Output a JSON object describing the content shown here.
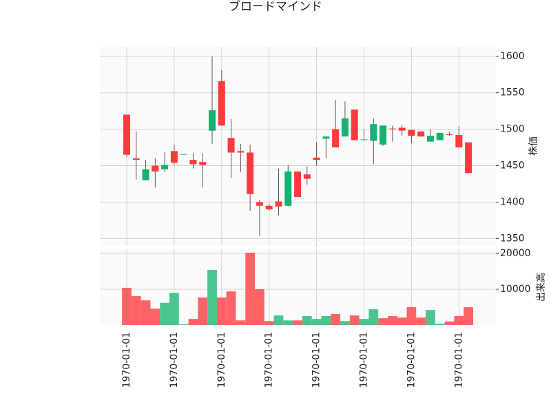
{
  "chart_data": {
    "type": "candlestick",
    "title": "ブロードマインド",
    "categories": [
      "1970-01-01",
      null,
      null,
      null,
      null,
      "1970-01-01",
      null,
      null,
      null,
      null,
      "1970-01-01",
      null,
      null,
      null,
      null,
      "1970-01-01",
      null,
      null,
      null,
      null,
      "1970-01-01",
      null,
      null,
      null,
      null,
      "1970-01-01",
      null,
      null,
      null,
      null,
      "1970-01-01",
      null,
      null,
      null,
      null,
      "1970-01-01",
      null
    ],
    "open": [
      1520,
      1460,
      1430,
      1450,
      1445,
      1470,
      1466,
      1458,
      1455,
      1498,
      1566,
      1488,
      1470,
      1468,
      1400,
      1395,
      1401,
      1395,
      1442,
      1438,
      1461,
      1487,
      1500,
      1490,
      1527,
      1486,
      1484,
      1479,
      1501,
      1502,
      1499,
      1497,
      1483,
      1485,
      1493,
      1492,
      1482
    ],
    "high": [
      1520,
      1497,
      1458,
      1460,
      1469,
      1479,
      1466,
      1467,
      1467,
      1600,
      1581,
      1514,
      1480,
      1479,
      1403,
      1398,
      1446,
      1451,
      1442,
      1449,
      1482,
      1490,
      1540,
      1538,
      1527,
      1500,
      1515,
      1505,
      1505,
      1506,
      1499,
      1497,
      1500,
      1495,
      1496,
      1504,
      1482
    ],
    "low": [
      1462,
      1431,
      1430,
      1420,
      1441,
      1451,
      1466,
      1446,
      1420,
      1480,
      1505,
      1433,
      1441,
      1388,
      1354,
      1388,
      1382,
      1394,
      1407,
      1424,
      1450,
      1460,
      1475,
      1490,
      1485,
      1484,
      1452,
      1477,
      1483,
      1491,
      1481,
      1490,
      1483,
      1485,
      1491,
      1475,
      1439
    ],
    "close": [
      1465,
      1458,
      1445,
      1442,
      1451,
      1454,
      1466,
      1452,
      1451,
      1526,
      1505,
      1468,
      1468,
      1411,
      1395,
      1390,
      1394,
      1442,
      1407,
      1432,
      1458,
      1490,
      1475,
      1515,
      1485,
      1486,
      1507,
      1505,
      1500,
      1498,
      1491,
      1490,
      1491,
      1495,
      1492,
      1475,
      1440
    ],
    "up_color": "#17b26f",
    "down_color": "#fe3a3c",
    "ylim": [
      1340,
      1613
    ],
    "yticks": [
      1350,
      1400,
      1450,
      1500,
      1550,
      1600
    ],
    "ylabel": "株価",
    "grid": true,
    "volume": {
      "ylabel": "出来高",
      "ylim": [
        0,
        21150
      ],
      "yticks": [
        10000,
        20000
      ],
      "values": [
        10400,
        8100,
        6900,
        4600,
        6200,
        9000,
        200,
        1700,
        7700,
        15400,
        7700,
        9400,
        1300,
        20200,
        10000,
        1100,
        2700,
        1300,
        1300,
        2500,
        1700,
        2500,
        3100,
        1100,
        2700,
        1700,
        4400,
        1900,
        2500,
        2100,
        5000,
        2100,
        4200,
        400,
        1000,
        2500,
        5000
      ],
      "colors": [
        "#fe6466",
        "#fe6466",
        "#fe6466",
        "#fe6466",
        "#4cc48f",
        "#4cc48f",
        "#4cc48f",
        "#fe6466",
        "#fe6466",
        "#4cc48f",
        "#fe6466",
        "#fe6466",
        "#fe6466",
        "#fe6466",
        "#fe6466",
        "#fe6466",
        "#4cc48f",
        "#4cc48f",
        "#fe6466",
        "#4cc48f",
        "#4cc48f",
        "#4cc48f",
        "#fe6466",
        "#4cc48f",
        "#fe6466",
        "#4cc48f",
        "#4cc48f",
        "#fe6466",
        "#fe6466",
        "#fe6466",
        "#fe6466",
        "#fe6466",
        "#4cc48f",
        "#4cc48f",
        "#fe6466",
        "#fe6466",
        "#fe6466"
      ]
    }
  }
}
